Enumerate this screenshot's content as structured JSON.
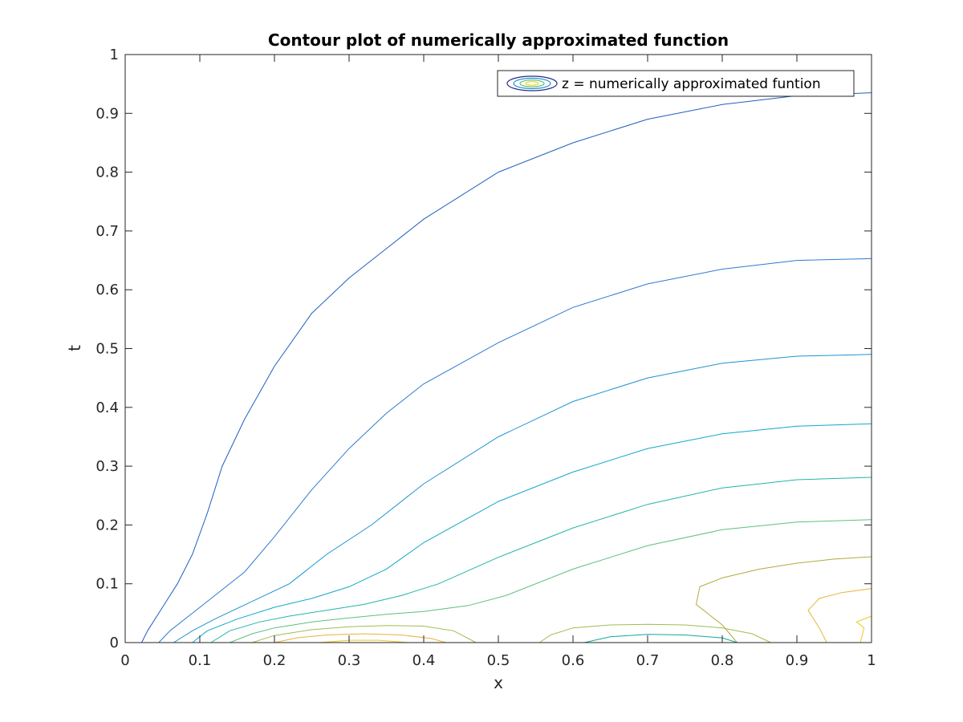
{
  "chart_data": {
    "type": "contour",
    "title": "Contour plot of numerically approximated function",
    "xlabel": "x",
    "ylabel": "t",
    "xlim": [
      0,
      1
    ],
    "ylim": [
      0,
      1
    ],
    "xticks": [
      "0",
      "0.1",
      "0.2",
      "0.3",
      "0.4",
      "0.5",
      "0.6",
      "0.7",
      "0.8",
      "0.9",
      "1"
    ],
    "yticks": [
      "0",
      "0.1",
      "0.2",
      "0.3",
      "0.4",
      "0.5",
      "0.6",
      "0.7",
      "0.8",
      "0.9",
      "1"
    ],
    "grid": false,
    "legend": {
      "position": "top-right",
      "entries": [
        "z = numerically approximated funtion"
      ]
    },
    "contours": [
      {
        "color": "#1f5fbf",
        "points": [
          [
            0.022,
            0
          ],
          [
            0.03,
            0.02
          ],
          [
            0.05,
            0.06
          ],
          [
            0.07,
            0.1
          ],
          [
            0.09,
            0.15
          ],
          [
            0.11,
            0.22
          ],
          [
            0.13,
            0.3
          ],
          [
            0.16,
            0.38
          ],
          [
            0.2,
            0.47
          ],
          [
            0.25,
            0.56
          ],
          [
            0.3,
            0.62
          ],
          [
            0.35,
            0.67
          ],
          [
            0.4,
            0.72
          ],
          [
            0.5,
            0.8
          ],
          [
            0.6,
            0.85
          ],
          [
            0.7,
            0.89
          ],
          [
            0.8,
            0.915
          ],
          [
            0.9,
            0.93
          ],
          [
            1.0,
            0.935
          ]
        ]
      },
      {
        "color": "#2f7ad0",
        "points": [
          [
            0.045,
            0
          ],
          [
            0.06,
            0.02
          ],
          [
            0.09,
            0.05
          ],
          [
            0.12,
            0.08
          ],
          [
            0.16,
            0.12
          ],
          [
            0.2,
            0.18
          ],
          [
            0.25,
            0.26
          ],
          [
            0.3,
            0.33
          ],
          [
            0.35,
            0.39
          ],
          [
            0.4,
            0.44
          ],
          [
            0.5,
            0.51
          ],
          [
            0.6,
            0.57
          ],
          [
            0.7,
            0.61
          ],
          [
            0.8,
            0.635
          ],
          [
            0.9,
            0.65
          ],
          [
            1.0,
            0.653
          ]
        ]
      },
      {
        "color": "#1e92d4",
        "points": [
          [
            0.065,
            0
          ],
          [
            0.09,
            0.02
          ],
          [
            0.12,
            0.04
          ],
          [
            0.17,
            0.07
          ],
          [
            0.22,
            0.1
          ],
          [
            0.27,
            0.15
          ],
          [
            0.33,
            0.2
          ],
          [
            0.4,
            0.27
          ],
          [
            0.5,
            0.35
          ],
          [
            0.6,
            0.41
          ],
          [
            0.7,
            0.45
          ],
          [
            0.8,
            0.475
          ],
          [
            0.9,
            0.487
          ],
          [
            1.0,
            0.49
          ]
        ]
      },
      {
        "color": "#10a8c8",
        "points": [
          [
            0.09,
            0
          ],
          [
            0.11,
            0.02
          ],
          [
            0.15,
            0.04
          ],
          [
            0.2,
            0.06
          ],
          [
            0.25,
            0.075
          ],
          [
            0.3,
            0.095
          ],
          [
            0.35,
            0.125
          ],
          [
            0.4,
            0.17
          ],
          [
            0.5,
            0.24
          ],
          [
            0.6,
            0.29
          ],
          [
            0.7,
            0.33
          ],
          [
            0.8,
            0.355
          ],
          [
            0.9,
            0.368
          ],
          [
            1.0,
            0.372
          ]
        ]
      },
      {
        "color": "#22b5a6",
        "points": [
          [
            0.115,
            0
          ],
          [
            0.14,
            0.02
          ],
          [
            0.18,
            0.035
          ],
          [
            0.22,
            0.045
          ],
          [
            0.27,
            0.055
          ],
          [
            0.32,
            0.065
          ],
          [
            0.37,
            0.08
          ],
          [
            0.42,
            0.1
          ],
          [
            0.5,
            0.145
          ],
          [
            0.6,
            0.195
          ],
          [
            0.7,
            0.235
          ],
          [
            0.8,
            0.263
          ],
          [
            0.9,
            0.277
          ],
          [
            1.0,
            0.281
          ]
        ]
      },
      {
        "color": "#5fbf7e",
        "points": [
          [
            0.14,
            0
          ],
          [
            0.17,
            0.015
          ],
          [
            0.2,
            0.025
          ],
          [
            0.25,
            0.035
          ],
          [
            0.3,
            0.042
          ],
          [
            0.35,
            0.048
          ],
          [
            0.4,
            0.053
          ],
          [
            0.46,
            0.063
          ],
          [
            0.51,
            0.08
          ],
          [
            0.6,
            0.125
          ],
          [
            0.7,
            0.165
          ],
          [
            0.8,
            0.192
          ],
          [
            0.9,
            0.205
          ],
          [
            1.0,
            0.209
          ]
        ]
      },
      {
        "color": "#a0bc52",
        "points": [
          [
            0.17,
            0
          ],
          [
            0.2,
            0.012
          ],
          [
            0.25,
            0.022
          ],
          [
            0.3,
            0.027
          ],
          [
            0.35,
            0.029
          ],
          [
            0.4,
            0.028
          ],
          [
            0.44,
            0.02
          ],
          [
            0.47,
            0
          ]
        ]
      },
      {
        "color": "#a0bc52",
        "points": [
          [
            0.555,
            0
          ],
          [
            0.57,
            0.013
          ],
          [
            0.6,
            0.025
          ],
          [
            0.65,
            0.03
          ],
          [
            0.7,
            0.031
          ],
          [
            0.75,
            0.03
          ],
          [
            0.8,
            0.025
          ],
          [
            0.84,
            0.015
          ],
          [
            0.865,
            0
          ]
        ]
      },
      {
        "color": "#b3aa3d",
        "points": [
          [
            0.82,
            0
          ],
          [
            0.81,
            0.015
          ],
          [
            0.8,
            0.03
          ],
          [
            0.78,
            0.05
          ],
          [
            0.765,
            0.065
          ],
          [
            0.77,
            0.095
          ],
          [
            0.8,
            0.11
          ],
          [
            0.85,
            0.125
          ],
          [
            0.9,
            0.135
          ],
          [
            0.95,
            0.142
          ],
          [
            1.0,
            0.146
          ]
        ]
      },
      {
        "color": "#e7b33a",
        "points": [
          [
            0.2,
            0
          ],
          [
            0.23,
            0.008
          ],
          [
            0.27,
            0.013
          ],
          [
            0.32,
            0.015
          ],
          [
            0.37,
            0.013
          ],
          [
            0.41,
            0.007
          ],
          [
            0.43,
            0
          ]
        ]
      },
      {
        "color": "#e7b33a",
        "points": [
          [
            0.94,
            0
          ],
          [
            0.93,
            0.025
          ],
          [
            0.915,
            0.055
          ],
          [
            0.93,
            0.075
          ],
          [
            0.96,
            0.085
          ],
          [
            1.0,
            0.092
          ]
        ]
      },
      {
        "color": "#f0c820",
        "points": [
          [
            0.26,
            0
          ],
          [
            0.3,
            0.004
          ],
          [
            0.34,
            0.004
          ],
          [
            0.38,
            0
          ]
        ]
      },
      {
        "color": "#f0c820",
        "points": [
          [
            0.985,
            0
          ],
          [
            0.99,
            0.025
          ],
          [
            0.98,
            0.035
          ],
          [
            1.0,
            0.045
          ]
        ]
      },
      {
        "color": "#15a59c",
        "points": [
          [
            0.615,
            0
          ],
          [
            0.65,
            0.01
          ],
          [
            0.7,
            0.014
          ],
          [
            0.75,
            0.013
          ],
          [
            0.8,
            0.008
          ],
          [
            0.82,
            0
          ]
        ]
      }
    ],
    "legend_swatch_colors": [
      "#2a2a8a",
      "#1f8fcf",
      "#4fc080",
      "#f2d21e"
    ]
  }
}
